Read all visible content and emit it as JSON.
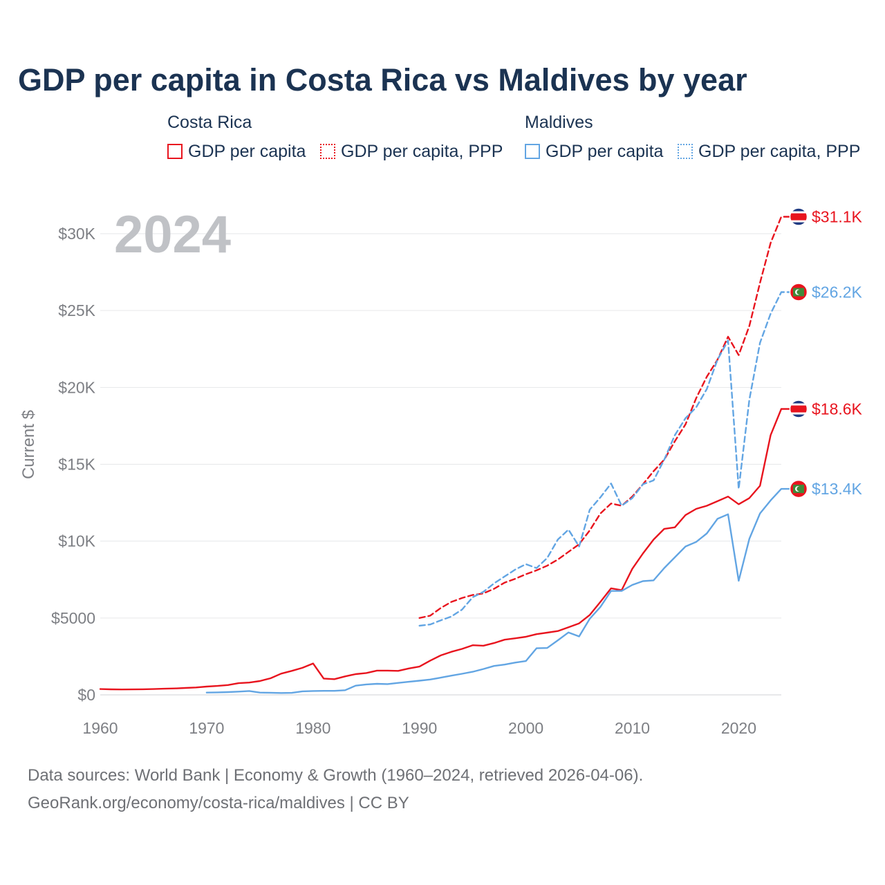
{
  "chart_data": {
    "type": "line",
    "title": "GDP per capita in Costa Rica vs Maldives by year",
    "year_overlay": "2024",
    "ylabel": "Current $",
    "xlabel": "",
    "xlim": [
      1960,
      2025
    ],
    "ylim": [
      0,
      32000
    ],
    "x_ticks": [
      1960,
      1970,
      1980,
      1990,
      2000,
      2010,
      2020
    ],
    "x_tick_labels": [
      "1960",
      "1970",
      "1980",
      "1990",
      "2000",
      "2010",
      "2020"
    ],
    "y_ticks": [
      0,
      5000,
      10000,
      15000,
      20000,
      25000,
      30000
    ],
    "y_tick_labels": [
      "$0",
      "$5000",
      "$10K",
      "$15K",
      "$20K",
      "$25K",
      "$30K"
    ],
    "legend": {
      "groups": [
        {
          "name": "Costa Rica",
          "items": [
            "GDP per capita",
            "GDP per capita, PPP"
          ]
        },
        {
          "name": "Maldives",
          "items": [
            "GDP per capita",
            "GDP per capita, PPP"
          ]
        }
      ]
    },
    "colors": {
      "costa_rica": "#e8141e",
      "maldives": "#62a5e3"
    },
    "series": [
      {
        "name": "Costa Rica GDP per capita",
        "country": "Costa Rica",
        "style": "solid",
        "color": "#e8141e",
        "end_label": "$18.6K",
        "x": [
          1960,
          1961,
          1962,
          1963,
          1964,
          1965,
          1966,
          1967,
          1968,
          1969,
          1970,
          1971,
          1972,
          1973,
          1974,
          1975,
          1976,
          1977,
          1978,
          1979,
          1980,
          1981,
          1982,
          1983,
          1984,
          1985,
          1986,
          1987,
          1988,
          1989,
          1990,
          1991,
          1992,
          1993,
          1994,
          1995,
          1996,
          1997,
          1998,
          1999,
          2000,
          2001,
          2002,
          2003,
          2004,
          2005,
          2006,
          2007,
          2008,
          2009,
          2010,
          2011,
          2012,
          2013,
          2014,
          2015,
          2016,
          2017,
          2018,
          2019,
          2020,
          2021,
          2022,
          2023,
          2024
        ],
        "values": [
          380,
          360,
          350,
          355,
          365,
          380,
          400,
          420,
          450,
          480,
          540,
          580,
          640,
          760,
          800,
          900,
          1080,
          1380,
          1560,
          1760,
          2040,
          1060,
          1020,
          1200,
          1350,
          1420,
          1580,
          1580,
          1560,
          1720,
          1840,
          2220,
          2570,
          2800,
          2990,
          3230,
          3200,
          3370,
          3590,
          3680,
          3780,
          3950,
          4050,
          4150,
          4400,
          4650,
          5200,
          6050,
          6930,
          6810,
          8200,
          9200,
          10100,
          10800,
          10900,
          11700,
          12100,
          12300,
          12600,
          12900,
          12400,
          12800,
          13600,
          16900,
          18600
        ]
      },
      {
        "name": "Costa Rica GDP per capita, PPP",
        "country": "Costa Rica",
        "style": "dashed",
        "color": "#e8141e",
        "end_label": "$31.1K",
        "x": [
          1990,
          1991,
          1992,
          1993,
          1994,
          1995,
          1996,
          1997,
          1998,
          1999,
          2000,
          2001,
          2002,
          2003,
          2004,
          2005,
          2006,
          2007,
          2008,
          2009,
          2010,
          2011,
          2012,
          2013,
          2014,
          2015,
          2016,
          2017,
          2018,
          2019,
          2020,
          2021,
          2022,
          2023,
          2024
        ],
        "values": [
          5000,
          5150,
          5650,
          6050,
          6300,
          6500,
          6600,
          6900,
          7300,
          7550,
          7850,
          8100,
          8400,
          8800,
          9300,
          9800,
          10700,
          11800,
          12450,
          12300,
          12900,
          13700,
          14550,
          15300,
          16500,
          17600,
          19300,
          20700,
          21800,
          23300,
          22100,
          24000,
          26800,
          29400,
          31100
        ]
      },
      {
        "name": "Maldives GDP per capita",
        "country": "Maldives",
        "style": "solid",
        "color": "#62a5e3",
        "end_label": "$13.4K",
        "x": [
          1970,
          1971,
          1972,
          1973,
          1974,
          1975,
          1976,
          1977,
          1978,
          1979,
          1980,
          1981,
          1982,
          1983,
          1984,
          1985,
          1986,
          1987,
          1988,
          1989,
          1990,
          1991,
          1992,
          1993,
          1994,
          1995,
          1996,
          1997,
          1998,
          1999,
          2000,
          2001,
          2002,
          2003,
          2004,
          2005,
          2006,
          2007,
          2008,
          2009,
          2010,
          2011,
          2012,
          2013,
          2014,
          2015,
          2016,
          2017,
          2018,
          2019,
          2020,
          2021,
          2022,
          2023,
          2024
        ],
        "values": [
          150,
          160,
          180,
          210,
          250,
          150,
          140,
          120,
          130,
          230,
          250,
          260,
          260,
          300,
          600,
          680,
          720,
          700,
          780,
          850,
          920,
          1000,
          1120,
          1250,
          1370,
          1500,
          1680,
          1880,
          1970,
          2100,
          2200,
          3030,
          3050,
          3550,
          4060,
          3800,
          4950,
          5720,
          6760,
          6760,
          7150,
          7400,
          7450,
          8250,
          8950,
          9650,
          9950,
          10500,
          11450,
          11750,
          7420,
          10150,
          11800,
          12650,
          13400
        ]
      },
      {
        "name": "Maldives GDP per capita, PPP",
        "country": "Maldives",
        "style": "dashed",
        "color": "#62a5e3",
        "end_label": "$26.2K",
        "x": [
          1990,
          1991,
          1992,
          1993,
          1994,
          1995,
          1996,
          1997,
          1998,
          1999,
          2000,
          2001,
          2002,
          2003,
          2004,
          2005,
          2006,
          2007,
          2008,
          2009,
          2010,
          2011,
          2012,
          2013,
          2014,
          2015,
          2016,
          2017,
          2018,
          2019,
          2020,
          2021,
          2022,
          2023,
          2024
        ],
        "values": [
          4500,
          4580,
          4850,
          5100,
          5550,
          6350,
          6700,
          7250,
          7700,
          8150,
          8500,
          8250,
          8900,
          10100,
          10750,
          9650,
          12050,
          12850,
          13750,
          12300,
          12800,
          13700,
          13950,
          15300,
          16900,
          18000,
          18700,
          19900,
          21800,
          23050,
          13400,
          19200,
          22900,
          24800,
          26200
        ]
      }
    ]
  },
  "legend_labels": {
    "costa_rica": "Costa Rica",
    "maldives": "Maldives",
    "cr_gdp": "GDP per capita",
    "cr_ppp": "GDP per capita, PPP",
    "mv_gdp": "GDP per capita",
    "mv_ppp": "GDP per capita, PPP"
  },
  "footer": {
    "sources": "Data sources: World Bank | Economy & Growth (1960–2024, retrieved 2026-04-06).",
    "credit": "GeoRank.org/economy/costa-rica/maldives | CC BY"
  },
  "flag_icons": {
    "costa_rica": "costa-rica-flag-icon",
    "maldives": "maldives-flag-icon"
  }
}
